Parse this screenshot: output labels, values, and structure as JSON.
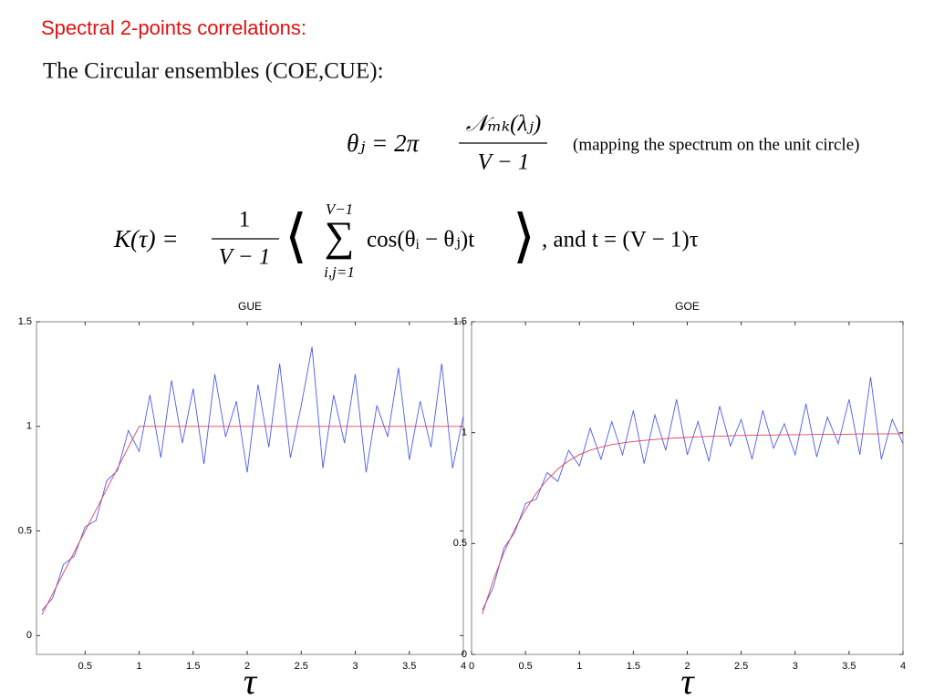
{
  "slide": {
    "heading": "Spectral 2-points correlations:",
    "subheading": "The Circular ensembles (COE,CUE):",
    "formula1": {
      "lhs": "θⱼ = 2π",
      "numerator": "𝒩ₘₖ(λⱼ)",
      "denominator": "V − 1",
      "note": "(mapping the spectrum on the unit circle)"
    },
    "formula2": {
      "lhs": "K(τ) =",
      "numerator": "1",
      "denominator": "V − 1",
      "open": "⟨",
      "sum_upper": "V−1",
      "sum": "∑",
      "sum_lower": "i,j=1",
      "body": "cos(θᵢ − θⱼ)t",
      "close": "⟩",
      "tail": ",   and   t = (V − 1)τ"
    }
  },
  "chart_data": [
    {
      "type": "line",
      "title": "GUE",
      "x_label": "τ",
      "x": [
        0.1,
        0.2,
        0.3,
        0.4,
        0.5,
        0.6,
        0.7,
        0.8,
        0.9,
        1.0,
        1.1,
        1.2,
        1.3,
        1.4,
        1.5,
        1.6,
        1.7,
        1.8,
        1.9,
        2.0,
        2.1,
        2.2,
        2.3,
        2.4,
        2.5,
        2.6,
        2.7,
        2.8,
        2.9,
        3.0,
        3.1,
        3.2,
        3.3,
        3.4,
        3.5,
        3.6,
        3.7,
        3.8,
        3.9,
        4.0
      ],
      "series": [
        {
          "color": "#4a5cf0",
          "values": [
            0.12,
            0.18,
            0.34,
            0.38,
            0.52,
            0.55,
            0.74,
            0.79,
            0.98,
            0.88,
            1.15,
            0.85,
            1.22,
            0.92,
            1.18,
            0.82,
            1.25,
            0.95,
            1.12,
            0.78,
            1.2,
            0.9,
            1.3,
            0.85,
            1.1,
            1.38,
            0.8,
            1.15,
            0.92,
            1.25,
            0.78,
            1.1,
            0.95,
            1.28,
            0.84,
            1.12,
            0.9,
            1.3,
            0.8,
            1.05
          ]
        },
        {
          "color": "#e0405a",
          "values": [
            0.1,
            0.2,
            0.3,
            0.4,
            0.5,
            0.6,
            0.7,
            0.8,
            0.9,
            1,
            1,
            1,
            1,
            1,
            1,
            1,
            1,
            1,
            1,
            1,
            1,
            1,
            1,
            1,
            1,
            1,
            1,
            1,
            1,
            1,
            1,
            1,
            1,
            1,
            1,
            1,
            1,
            1,
            1,
            1
          ]
        }
      ],
      "xlim": [
        0.05,
        4
      ],
      "xticks": [
        0.5,
        1,
        1.5,
        2,
        2.5,
        3,
        3.5,
        4
      ],
      "ylim": [
        -0.09,
        1.5
      ],
      "yticks": [
        0,
        0.5,
        1,
        1.5
      ]
    },
    {
      "type": "line",
      "title": "GOE",
      "x_label": "τ",
      "x": [
        0.1,
        0.2,
        0.3,
        0.4,
        0.5,
        0.6,
        0.7,
        0.8,
        0.9,
        1.0,
        1.1,
        1.2,
        1.3,
        1.4,
        1.5,
        1.6,
        1.7,
        1.8,
        1.9,
        2.0,
        2.1,
        2.2,
        2.3,
        2.4,
        2.5,
        2.6,
        2.7,
        2.8,
        2.9,
        3.0,
        3.1,
        3.2,
        3.3,
        3.4,
        3.5,
        3.6,
        3.7,
        3.8,
        3.9,
        4.0
      ],
      "series": [
        {
          "color": "#4a5cf0",
          "values": [
            0.2,
            0.3,
            0.48,
            0.55,
            0.68,
            0.7,
            0.82,
            0.78,
            0.92,
            0.85,
            1.02,
            0.88,
            1.05,
            0.9,
            1.1,
            0.86,
            1.08,
            0.92,
            1.15,
            0.9,
            1.05,
            0.87,
            1.12,
            0.94,
            1.06,
            0.88,
            1.1,
            0.93,
            1.04,
            0.9,
            1.13,
            0.89,
            1.07,
            0.95,
            1.15,
            0.9,
            1.25,
            0.88,
            1.06,
            0.95
          ]
        },
        {
          "color": "#e0405a",
          "values": [
            0.182,
            0.333,
            0.459,
            0.565,
            0.653,
            0.727,
            0.787,
            0.836,
            0.873,
            0.901,
            0.921,
            0.935,
            0.946,
            0.954,
            0.96,
            0.965,
            0.969,
            0.973,
            0.976,
            0.978,
            0.981,
            0.983,
            0.984,
            0.986,
            0.987,
            0.988,
            0.989,
            0.989,
            0.99,
            0.991,
            0.991,
            0.992,
            0.992,
            0.993,
            0.993,
            0.994,
            0.994,
            0.994,
            0.995,
            0.995
          ]
        }
      ],
      "xlim": [
        0,
        4
      ],
      "xticks": [
        0,
        0.5,
        1,
        1.5,
        2,
        2.5,
        3,
        3.5,
        4
      ],
      "ylim": [
        0,
        1.5
      ],
      "yticks": [
        0,
        0.5,
        1,
        1.5
      ]
    }
  ]
}
